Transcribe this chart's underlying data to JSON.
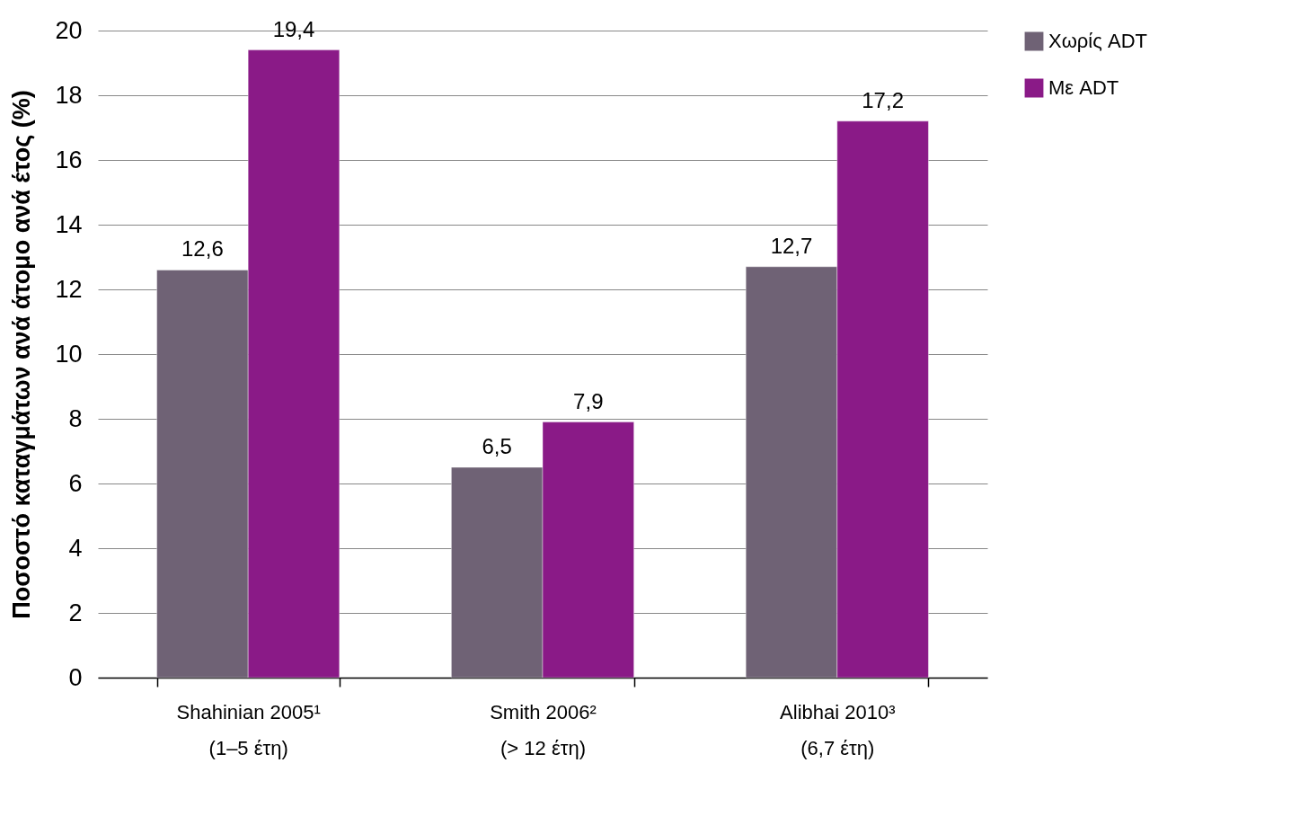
{
  "chart_data": {
    "type": "bar",
    "ylabel": "Ποσοστό καταγμάτων ανά άτομο ανά έτος (%)",
    "categories": [
      "Shahinian 2005¹\n(1–5 έτη)",
      "Smith 2006²\n(> 12 έτη)",
      "Alibhai 2010³\n(6,7 έτη)"
    ],
    "series": [
      {
        "name": "Χωρίς ADT",
        "color": "#6f6275",
        "values": [
          12.6,
          6.5,
          12.7
        ],
        "value_labels": [
          "12,6",
          "6,5",
          "12,7"
        ]
      },
      {
        "name": "Με ADT",
        "color": "#8a1a87",
        "values": [
          19.4,
          7.9,
          17.2
        ],
        "value_labels": [
          "19,4",
          "7,9",
          "17,2"
        ]
      }
    ],
    "ylim": [
      0,
      20
    ],
    "yticks": [
      0,
      2,
      4,
      6,
      8,
      10,
      12,
      14,
      16,
      18,
      20
    ],
    "grid": "y",
    "legend": "right"
  }
}
